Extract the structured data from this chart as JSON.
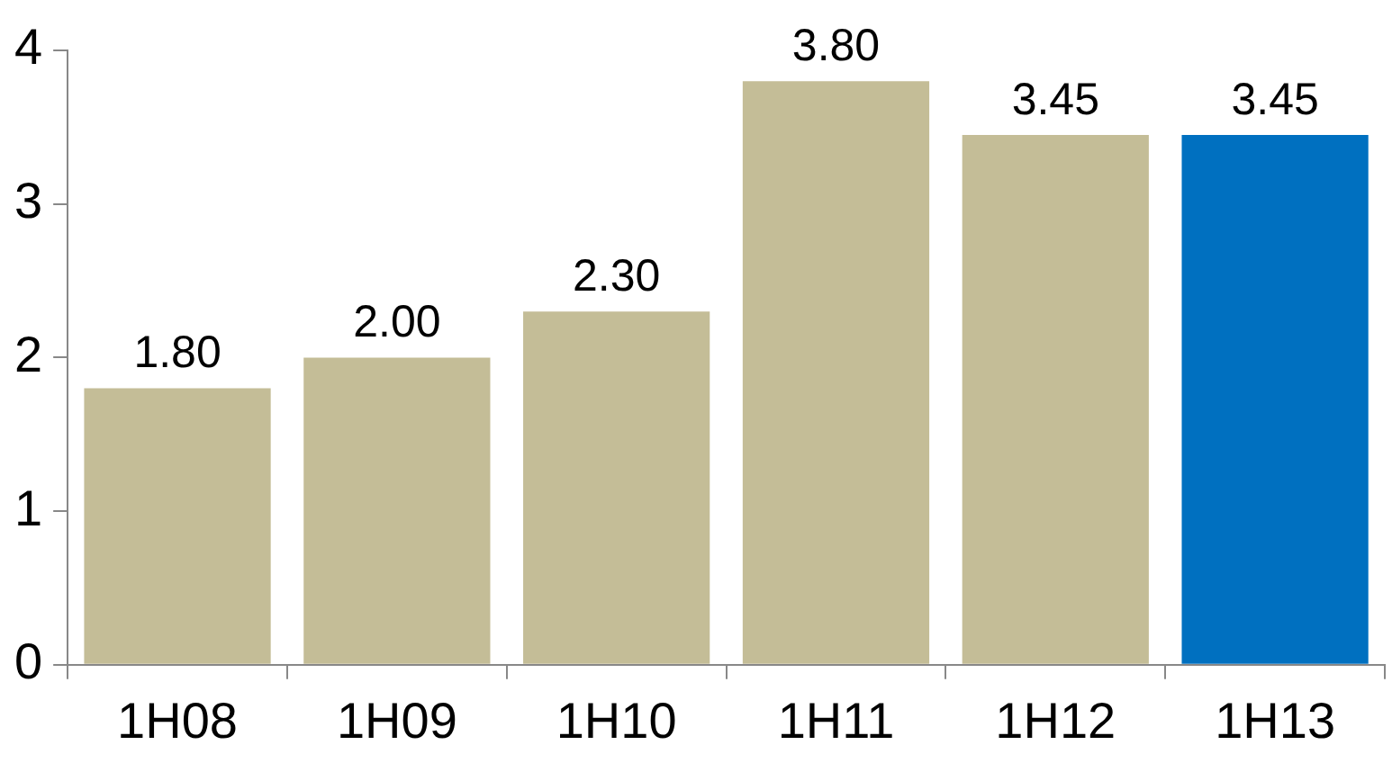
{
  "chart_data": {
    "type": "bar",
    "categories": [
      "1H08",
      "1H09",
      "1H10",
      "1H11",
      "1H12",
      "1H13"
    ],
    "values": [
      1.8,
      2.0,
      2.3,
      3.8,
      3.45,
      3.45
    ],
    "colors": [
      "#c4bd97",
      "#c4bd97",
      "#c4bd97",
      "#c4bd97",
      "#c4bd97",
      "#0070c0"
    ],
    "value_labels": [
      "1.80",
      "2.00",
      "2.30",
      "3.80",
      "3.45",
      "3.45"
    ],
    "ylim": [
      0,
      4
    ],
    "yticks": [
      0,
      1,
      2,
      3,
      4
    ],
    "grid": false,
    "legend": false
  }
}
